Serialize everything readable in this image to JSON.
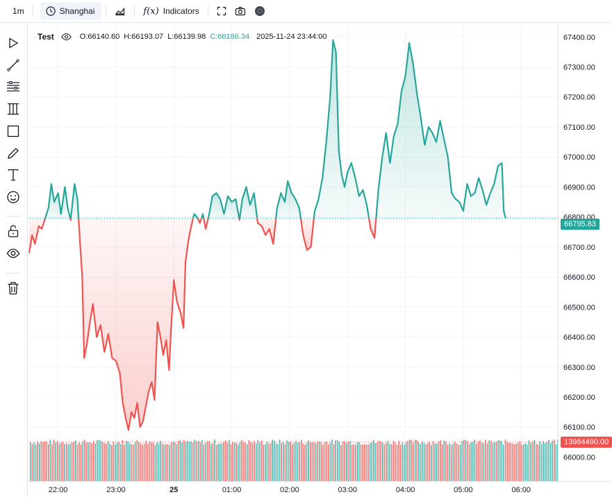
{
  "toolbar": {
    "interval": "1m",
    "timezone": "Shanghai",
    "indicators_label": "Indicators",
    "indicators_fx": "f(x)"
  },
  "legend": {
    "symbol": "Test",
    "open": "O:66140.60",
    "high": "H:66193.07",
    "low": "L:66139.98",
    "close": "C:66186.34",
    "timestamp": "2025-11-24 23:44:00"
  },
  "price_labels": {
    "last": "66795.83",
    "volume": "13984490.00"
  },
  "colors": {
    "up": "#26a69a",
    "down": "#ef5350",
    "grid": "#f0f3fa",
    "text": "#131722"
  },
  "chart_data": {
    "type": "area",
    "baseline": 66795.83,
    "y_ticks": [
      "67400.00",
      "67300.00",
      "67200.00",
      "67100.00",
      "67000.00",
      "66900.00",
      "66800.00",
      "66700.00",
      "66600.00",
      "66500.00",
      "66400.00",
      "66300.00",
      "66200.00",
      "66100.00",
      "66000.00"
    ],
    "x_ticks": [
      "22:00",
      "23:00",
      "25",
      "01:00",
      "02:00",
      "03:00",
      "04:00",
      "05:00",
      "06:00"
    ],
    "ylim": [
      65920,
      67440
    ],
    "x_start": "21:30",
    "x_end": "06:38",
    "points": [
      [
        "21:30",
        66680
      ],
      [
        "21:33",
        66740
      ],
      [
        "21:36",
        66710
      ],
      [
        "21:40",
        66770
      ],
      [
        "21:43",
        66760
      ],
      [
        "21:47",
        66800
      ],
      [
        "21:50",
        66830
      ],
      [
        "21:53",
        66910
      ],
      [
        "21:56",
        66850
      ],
      [
        "22:00",
        66880
      ],
      [
        "22:03",
        66810
      ],
      [
        "22:07",
        66900
      ],
      [
        "22:10",
        66830
      ],
      [
        "22:13",
        66790
      ],
      [
        "22:17",
        66910
      ],
      [
        "22:20",
        66860
      ],
      [
        "22:23",
        66700
      ],
      [
        "22:25",
        66600
      ],
      [
        "22:27",
        66330
      ],
      [
        "22:30",
        66380
      ],
      [
        "22:33",
        66450
      ],
      [
        "22:36",
        66510
      ],
      [
        "22:40",
        66400
      ],
      [
        "22:44",
        66440
      ],
      [
        "22:48",
        66350
      ],
      [
        "22:52",
        66410
      ],
      [
        "22:56",
        66330
      ],
      [
        "23:00",
        66320
      ],
      [
        "23:04",
        66280
      ],
      [
        "23:07",
        66180
      ],
      [
        "23:10",
        66130
      ],
      [
        "23:13",
        66090
      ],
      [
        "23:16",
        66150
      ],
      [
        "23:19",
        66130
      ],
      [
        "23:22",
        66180
      ],
      [
        "23:25",
        66100
      ],
      [
        "23:28",
        66120
      ],
      [
        "23:31",
        66170
      ],
      [
        "23:34",
        66220
      ],
      [
        "23:37",
        66250
      ],
      [
        "23:40",
        66190
      ],
      [
        "23:43",
        66450
      ],
      [
        "23:46",
        66400
      ],
      [
        "23:49",
        66340
      ],
      [
        "23:52",
        66390
      ],
      [
        "23:55",
        66290
      ],
      [
        "23:57",
        66420
      ],
      [
        "00:00",
        66590
      ],
      [
        "00:03",
        66520
      ],
      [
        "00:07",
        66480
      ],
      [
        "00:10",
        66430
      ],
      [
        "00:12",
        66650
      ],
      [
        "00:15",
        66720
      ],
      [
        "00:18",
        66770
      ],
      [
        "00:21",
        66810
      ],
      [
        "00:24",
        66800
      ],
      [
        "00:27",
        66780
      ],
      [
        "00:30",
        66810
      ],
      [
        "00:33",
        66760
      ],
      [
        "00:36",
        66800
      ],
      [
        "00:40",
        66870
      ],
      [
        "00:44",
        66880
      ],
      [
        "00:48",
        66860
      ],
      [
        "00:52",
        66810
      ],
      [
        "00:56",
        66870
      ],
      [
        "01:00",
        66850
      ],
      [
        "01:04",
        66860
      ],
      [
        "01:08",
        66790
      ],
      [
        "01:11",
        66860
      ],
      [
        "01:15",
        66900
      ],
      [
        "01:19",
        66840
      ],
      [
        "01:23",
        66880
      ],
      [
        "01:27",
        66780
      ],
      [
        "01:31",
        66770
      ],
      [
        "01:35",
        66740
      ],
      [
        "01:39",
        66760
      ],
      [
        "01:43",
        66710
      ],
      [
        "01:47",
        66830
      ],
      [
        "01:51",
        66880
      ],
      [
        "01:55",
        66850
      ],
      [
        "01:58",
        66920
      ],
      [
        "02:02",
        66880
      ],
      [
        "02:06",
        66860
      ],
      [
        "02:10",
        66830
      ],
      [
        "02:14",
        66740
      ],
      [
        "02:18",
        66690
      ],
      [
        "02:22",
        66700
      ],
      [
        "02:26",
        66820
      ],
      [
        "02:30",
        66860
      ],
      [
        "02:34",
        66930
      ],
      [
        "02:38",
        67050
      ],
      [
        "02:42",
        67200
      ],
      [
        "02:45",
        67390
      ],
      [
        "02:48",
        67350
      ],
      [
        "02:51",
        67020
      ],
      [
        "02:54",
        66940
      ],
      [
        "02:57",
        66900
      ],
      [
        "03:00",
        66950
      ],
      [
        "03:04",
        66980
      ],
      [
        "03:08",
        66930
      ],
      [
        "03:12",
        66870
      ],
      [
        "03:16",
        66890
      ],
      [
        "03:20",
        66840
      ],
      [
        "03:24",
        66760
      ],
      [
        "03:28",
        66730
      ],
      [
        "03:32",
        66890
      ],
      [
        "03:36",
        67000
      ],
      [
        "03:40",
        67080
      ],
      [
        "03:44",
        66980
      ],
      [
        "03:48",
        67070
      ],
      [
        "03:52",
        67110
      ],
      [
        "03:56",
        67220
      ],
      [
        "04:00",
        67270
      ],
      [
        "04:04",
        67380
      ],
      [
        "04:08",
        67310
      ],
      [
        "04:12",
        67210
      ],
      [
        "04:16",
        67130
      ],
      [
        "04:20",
        67040
      ],
      [
        "04:24",
        67100
      ],
      [
        "04:28",
        67080
      ],
      [
        "04:32",
        67050
      ],
      [
        "04:36",
        67120
      ],
      [
        "04:40",
        67060
      ],
      [
        "04:44",
        67000
      ],
      [
        "04:48",
        66880
      ],
      [
        "04:52",
        66860
      ],
      [
        "04:56",
        66850
      ],
      [
        "05:00",
        66820
      ],
      [
        "05:04",
        66910
      ],
      [
        "05:08",
        66870
      ],
      [
        "05:12",
        66880
      ],
      [
        "05:16",
        66930
      ],
      [
        "05:20",
        66890
      ],
      [
        "05:24",
        66840
      ],
      [
        "05:28",
        66880
      ],
      [
        "05:32",
        66910
      ],
      [
        "05:36",
        66970
      ],
      [
        "05:40",
        66980
      ],
      [
        "05:42",
        66820
      ],
      [
        "05:44",
        66796
      ]
    ],
    "volume_label": "13984490.00"
  }
}
